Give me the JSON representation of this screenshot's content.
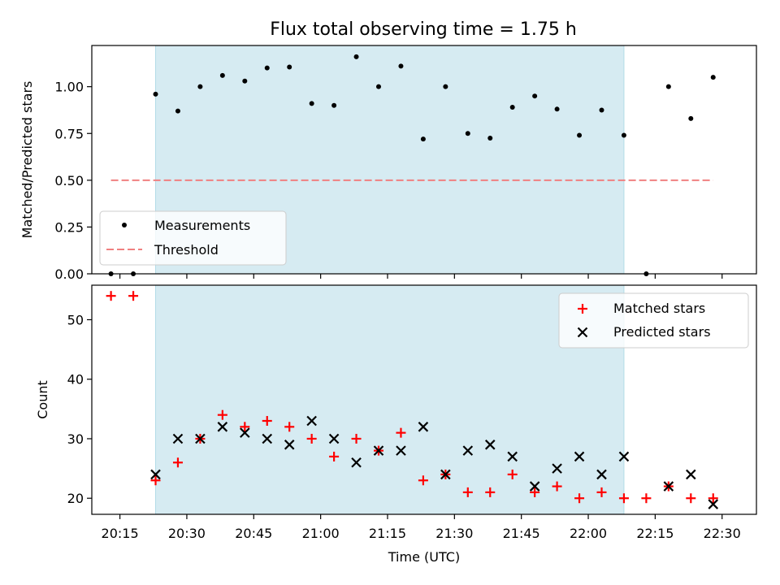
{
  "title": "Flux total observing time = 1.75 h",
  "chart_data": [
    {
      "type": "scatter",
      "panel": "top",
      "ylabel": "Matched/Predicted stars",
      "ylim": [
        0,
        1.22
      ],
      "yticks": [
        "0.00",
        "0.25",
        "0.50",
        "0.75",
        "1.00"
      ],
      "shaded_interval": {
        "start": "20:23",
        "end": "22:08",
        "color": "#add8e6"
      },
      "legend_position": "lower-left",
      "series": [
        {
          "name": "Measurements",
          "marker": "dot",
          "color": "#000000",
          "x": [
            "20:13",
            "20:18",
            "20:23",
            "20:28",
            "20:33",
            "20:38",
            "20:43",
            "20:48",
            "20:53",
            "20:58",
            "21:03",
            "21:08",
            "21:13",
            "21:18",
            "21:23",
            "21:28",
            "21:33",
            "21:38",
            "21:43",
            "21:48",
            "21:53",
            "21:58",
            "22:03",
            "22:08",
            "22:13",
            "22:18",
            "22:23",
            "22:28"
          ],
          "y": [
            0.0,
            0.0,
            0.96,
            0.87,
            1.0,
            1.06,
            1.03,
            1.1,
            1.105,
            0.91,
            0.9,
            1.16,
            1.0,
            1.11,
            0.72,
            1.0,
            0.75,
            0.725,
            0.89,
            0.95,
            0.88,
            0.74,
            0.875,
            0.74,
            0.0,
            1.0,
            0.83,
            1.05
          ]
        },
        {
          "name": "Threshold",
          "line": "dashed",
          "color": "#f08080",
          "x": [
            "20:13",
            "22:28"
          ],
          "y": [
            0.5,
            0.5
          ]
        }
      ]
    },
    {
      "type": "scatter",
      "panel": "bottom",
      "ylabel": "Count",
      "xlabel": "Time (UTC)",
      "ylim": [
        17,
        56
      ],
      "yticks": [
        "20",
        "30",
        "40",
        "50"
      ],
      "xticks": [
        "20:15",
        "20:30",
        "20:45",
        "21:00",
        "21:15",
        "21:30",
        "21:45",
        "22:00",
        "22:15",
        "22:30"
      ],
      "legend_position": "upper-right",
      "series": [
        {
          "name": "Matched stars",
          "marker": "plus",
          "color": "#ff0000",
          "x": [
            "20:13",
            "20:18",
            "20:23",
            "20:28",
            "20:33",
            "20:38",
            "20:43",
            "20:48",
            "20:53",
            "20:58",
            "21:03",
            "21:08",
            "21:13",
            "21:18",
            "21:23",
            "21:28",
            "21:33",
            "21:38",
            "21:43",
            "21:48",
            "21:53",
            "21:58",
            "22:03",
            "22:08",
            "22:13",
            "22:18",
            "22:23",
            "22:28"
          ],
          "y": [
            54,
            54,
            23,
            26,
            30,
            34,
            32,
            33,
            32,
            30,
            27,
            30,
            28,
            31,
            23,
            24,
            21,
            21,
            24,
            21,
            22,
            20,
            21,
            20,
            20,
            22,
            20,
            20
          ]
        },
        {
          "name": "Predicted stars",
          "marker": "x",
          "color": "#000000",
          "x": [
            "20:23",
            "20:28",
            "20:33",
            "20:38",
            "20:43",
            "20:48",
            "20:53",
            "20:58",
            "21:03",
            "21:08",
            "21:13",
            "21:18",
            "21:23",
            "21:28",
            "21:33",
            "21:38",
            "21:43",
            "21:48",
            "21:53",
            "21:58",
            "22:03",
            "22:08",
            "22:18",
            "22:23",
            "22:28"
          ],
          "y": [
            24,
            30,
            30,
            32,
            31,
            30,
            29,
            33,
            30,
            26,
            28,
            28,
            32,
            24,
            28,
            29,
            27,
            22,
            25,
            27,
            24,
            27,
            22,
            24,
            19
          ]
        }
      ]
    }
  ]
}
